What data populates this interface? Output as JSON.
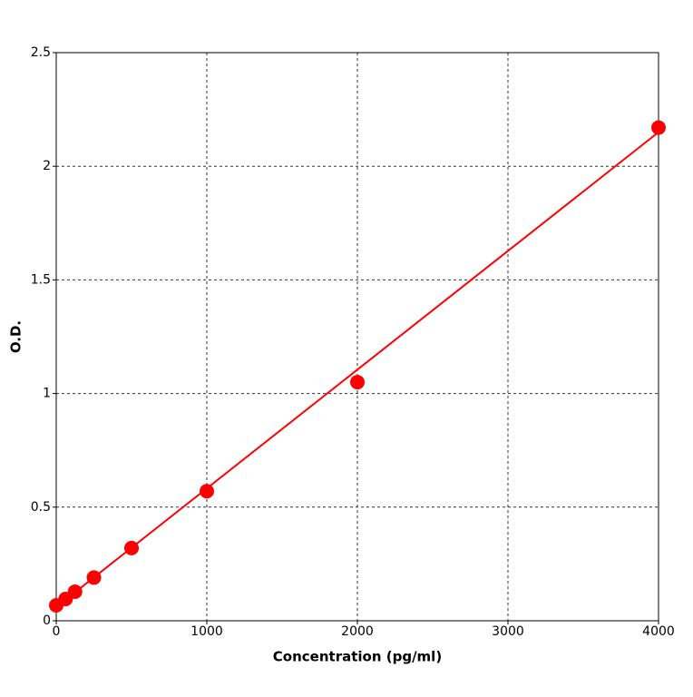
{
  "chart_data": {
    "type": "scatter",
    "x_label": "Concentration (pg/ml)",
    "y_label": "O.D.",
    "x": [
      0,
      62.5,
      125,
      250,
      500,
      1000,
      2000,
      4000
    ],
    "values": [
      0.068,
      0.096,
      0.128,
      0.19,
      0.32,
      0.57,
      1.05,
      2.17
    ],
    "color": "#ff0000",
    "fit_line": {
      "x": [
        0,
        4000
      ],
      "values": [
        0.06,
        2.15
      ]
    },
    "xlim": [
      0,
      4000
    ],
    "ylim": [
      0,
      2.5
    ],
    "xticks": [
      0,
      1000,
      2000,
      3000,
      4000
    ],
    "yticks": [
      0,
      0.5,
      1,
      1.5,
      2,
      2.5
    ],
    "grid": true
  }
}
